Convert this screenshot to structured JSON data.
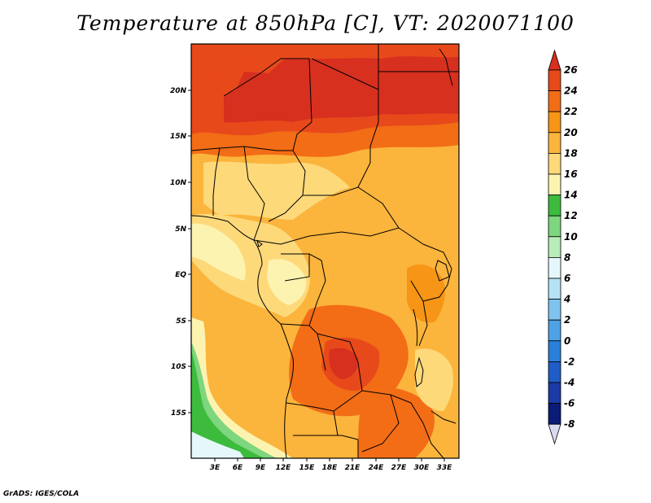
{
  "title": "Temperature at 850hPa [C], VT: 2020071100",
  "credit": "GrADS: IGES/COLA",
  "map": {
    "lat_labels": [
      "20N",
      "15N",
      "10N",
      "5N",
      "EQ",
      "5S",
      "10S",
      "15S"
    ],
    "lon_labels": [
      "3E",
      "6E",
      "9E",
      "12E",
      "15E",
      "18E",
      "21E",
      "24E",
      "27E",
      "30E",
      "33E"
    ]
  },
  "colorbar": {
    "labels": [
      "26",
      "24",
      "22",
      "20",
      "18",
      "16",
      "14",
      "12",
      "10",
      "8",
      "6",
      "4",
      "2",
      "0",
      "-2",
      "-4",
      "-6",
      "-8"
    ],
    "colors": [
      "#d7301f",
      "#e8491b",
      "#f26d16",
      "#f79516",
      "#fbb43c",
      "#fdd97a",
      "#fdf3b0",
      "#3dbb3d",
      "#7ed67e",
      "#b8ecb8",
      "#e6f7fb",
      "#b6e2f5",
      "#7fc4ee",
      "#4ea2e6",
      "#2a7fdc",
      "#1f5cc6",
      "#1a3aa6",
      "#0b1b78"
    ],
    "top_arrow_color": "#d7301f",
    "bottom_arrow_color": "#d9d9f0"
  }
}
